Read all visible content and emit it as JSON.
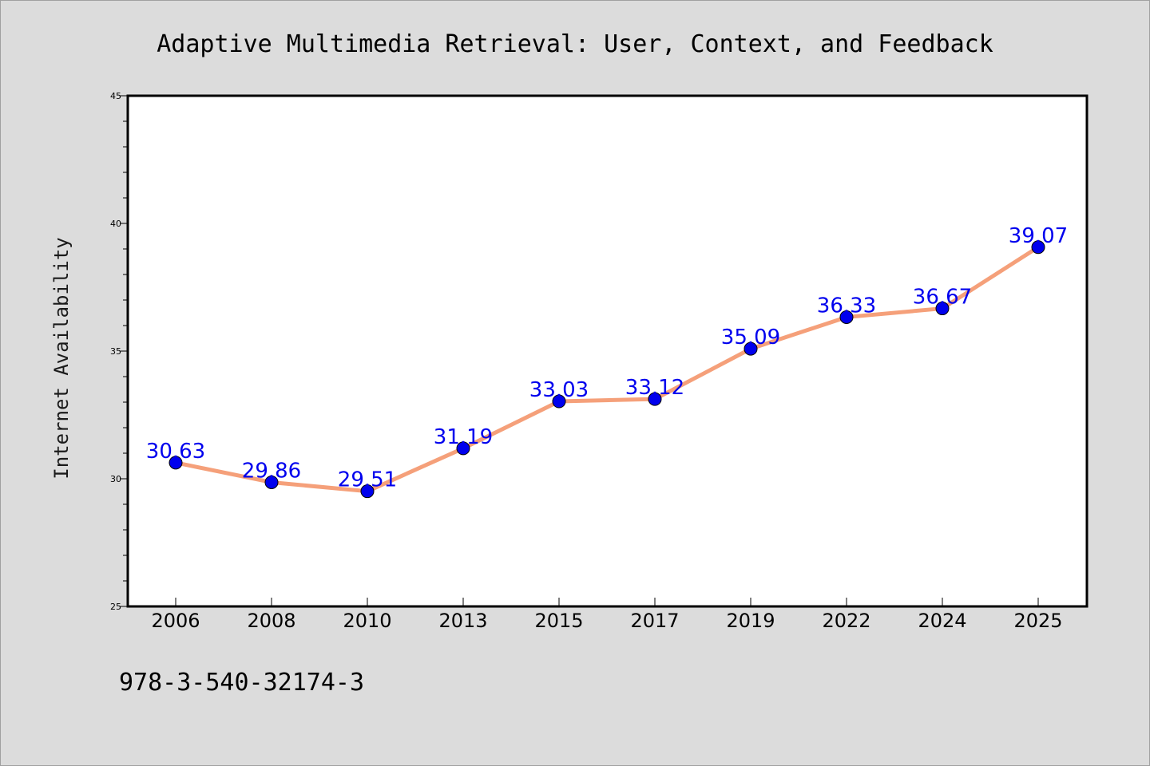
{
  "chart_data": {
    "type": "line",
    "title": "Adaptive Multimedia Retrieval: User, Context, and Feedback",
    "xlabel": "",
    "ylabel": "Internet Availability",
    "categories": [
      "2006",
      "2008",
      "2010",
      "2013",
      "2015",
      "2017",
      "2019",
      "2022",
      "2024",
      "2025"
    ],
    "series": [
      {
        "values": [
          30.63,
          29.86,
          29.51,
          31.19,
          33.03,
          33.12,
          35.09,
          36.33,
          36.67,
          39.07
        ],
        "line_color": "#f5a07a",
        "marker_color": "#0000ee"
      }
    ],
    "data_labels": [
      "30.63",
      "29.86",
      "29.51",
      "31.19",
      "33.03",
      "33.12",
      "35.09",
      "36.33",
      "36.67",
      "39.07"
    ],
    "ylim": [
      25,
      45
    ],
    "yticks": [
      25,
      30,
      35,
      40,
      45
    ],
    "grid": false,
    "legend": "none"
  },
  "footnote": "978-3-540-32174-3",
  "colors": {
    "figure_background": "#dcdcdc",
    "plot_background": "#ffffff",
    "line": "#f5a07a",
    "marker": "#0000ee",
    "data_label": "#0000ee"
  }
}
